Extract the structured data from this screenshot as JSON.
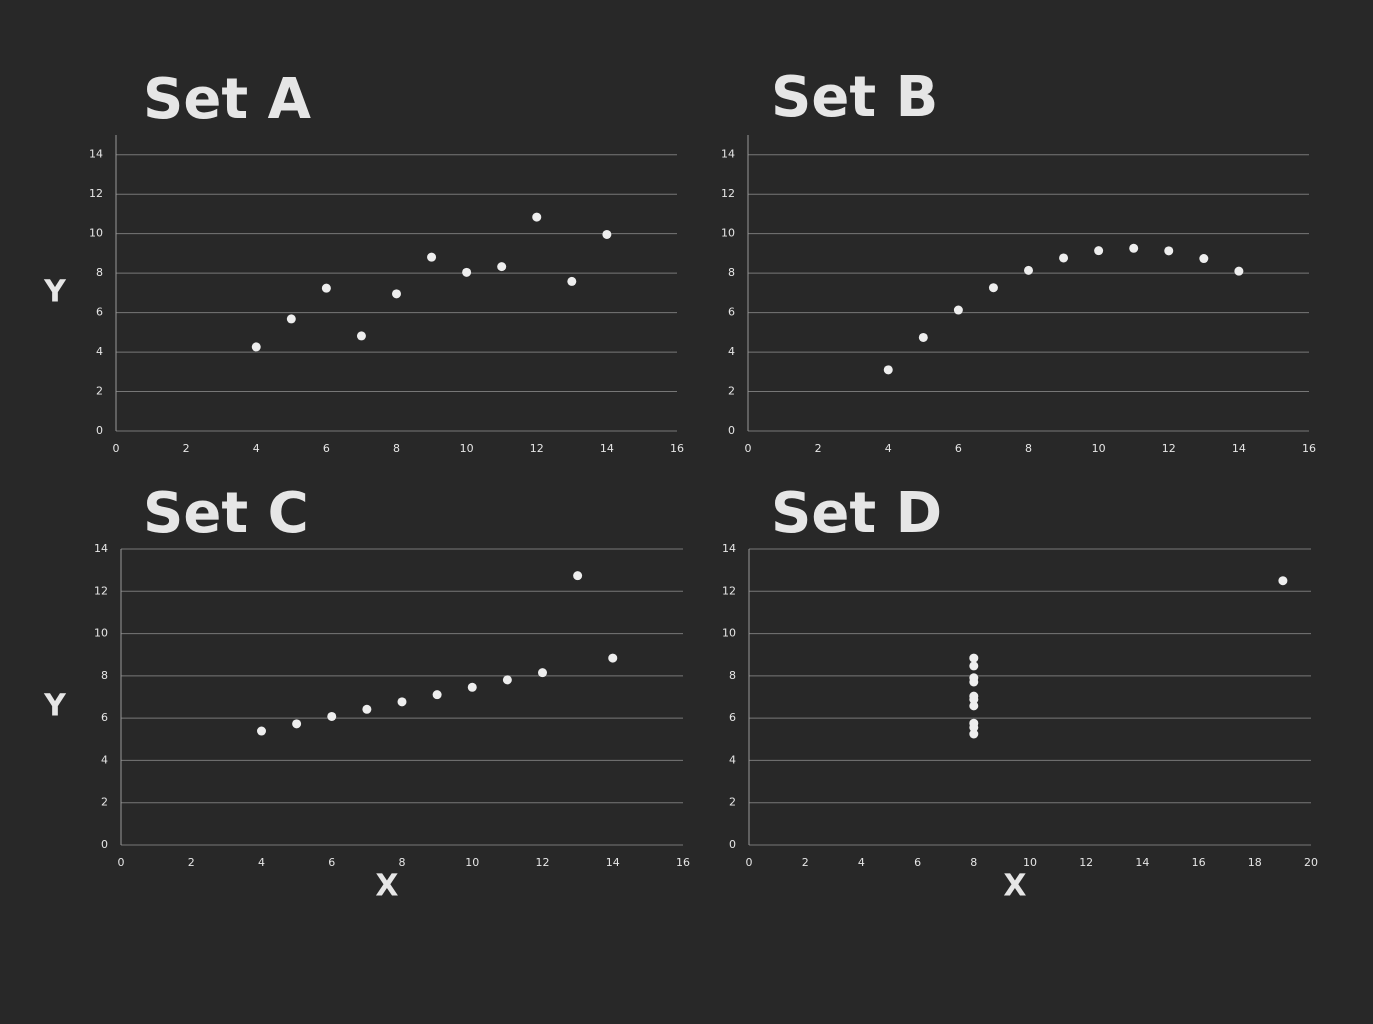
{
  "chart_data": [
    {
      "type": "scatter",
      "title": "Set A",
      "y_label": "Y",
      "color": "#eeeeee",
      "grid": true,
      "x": [
        10,
        8,
        13,
        9,
        11,
        14,
        6,
        4,
        12,
        7,
        5
      ],
      "values": [
        8.04,
        6.95,
        7.58,
        8.81,
        8.33,
        9.96,
        7.24,
        4.26,
        10.84,
        4.82,
        5.68
      ],
      "xlim": [
        0,
        16
      ],
      "xticks": [
        0,
        2,
        4,
        6,
        8,
        10,
        12,
        14,
        16
      ],
      "ylim": [
        0,
        15
      ],
      "yticks": [
        0,
        2,
        4,
        6,
        8,
        10,
        12,
        14
      ]
    },
    {
      "type": "scatter",
      "title": "Set B",
      "color": "#eeeeee",
      "grid": true,
      "x": [
        10,
        8,
        13,
        9,
        11,
        14,
        6,
        4,
        12,
        7,
        5
      ],
      "values": [
        9.14,
        8.14,
        8.74,
        8.77,
        9.26,
        8.1,
        6.13,
        3.1,
        9.13,
        7.26,
        4.74
      ],
      "xlim": [
        0,
        16
      ],
      "xticks": [
        0,
        2,
        4,
        6,
        8,
        10,
        12,
        14,
        16
      ],
      "ylim": [
        0,
        15
      ],
      "yticks": [
        0,
        2,
        4,
        6,
        8,
        10,
        12,
        14
      ]
    },
    {
      "type": "scatter",
      "title": "Set C",
      "x_label": "X",
      "y_label": "Y",
      "color": "#eeeeee",
      "grid": true,
      "x": [
        10,
        8,
        13,
        9,
        11,
        14,
        6,
        4,
        12,
        7,
        5
      ],
      "values": [
        7.46,
        6.77,
        12.74,
        7.11,
        7.81,
        8.84,
        6.08,
        5.39,
        8.15,
        6.42,
        5.73
      ],
      "xlim": [
        0,
        16
      ],
      "xticks": [
        0,
        2,
        4,
        6,
        8,
        10,
        12,
        14,
        16
      ],
      "ylim": [
        0,
        14
      ],
      "yticks": [
        0,
        2,
        4,
        6,
        8,
        10,
        12,
        14
      ]
    },
    {
      "type": "scatter",
      "title": "Set D",
      "x_label": "X",
      "color": "#eeeeee",
      "grid": true,
      "x": [
        8,
        8,
        8,
        8,
        8,
        8,
        8,
        19,
        8,
        8,
        8
      ],
      "values": [
        6.58,
        5.76,
        7.71,
        8.84,
        8.47,
        7.04,
        5.25,
        12.5,
        5.56,
        7.91,
        6.89
      ],
      "xlim": [
        0,
        20
      ],
      "xticks": [
        0,
        2,
        4,
        6,
        8,
        10,
        12,
        14,
        16,
        18,
        20
      ],
      "ylim": [
        0,
        14
      ],
      "yticks": [
        0,
        2,
        4,
        6,
        8,
        10,
        12,
        14
      ]
    }
  ]
}
